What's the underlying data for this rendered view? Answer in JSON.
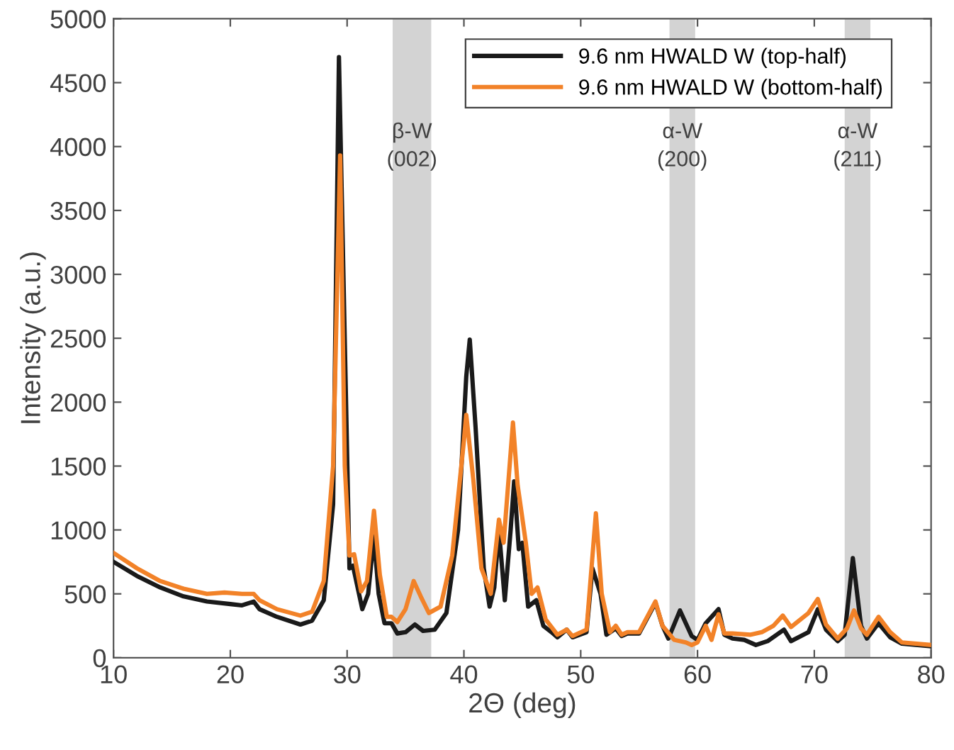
{
  "chart_data": {
    "type": "line",
    "xlabel": "2Θ (deg)",
    "ylabel": "Intensity (a.u.)",
    "xlim": [
      10,
      80
    ],
    "ylim": [
      0,
      5000
    ],
    "xticks": [
      10,
      20,
      30,
      40,
      50,
      60,
      70,
      80
    ],
    "yticks": [
      0,
      500,
      1000,
      1500,
      2000,
      2500,
      3000,
      3500,
      4000,
      4500,
      5000
    ],
    "grid": false,
    "legend": "top right",
    "line_style": "solid",
    "marker": "none",
    "bands": [
      {
        "axis": "x",
        "from": 33.9,
        "to": 37.2,
        "label": "β-W\n(002)",
        "color": "#d3d3d3"
      },
      {
        "axis": "x",
        "from": 57.6,
        "to": 59.8,
        "label": "α-W\n(200)",
        "color": "#d3d3d3"
      },
      {
        "axis": "x",
        "from": 72.6,
        "to": 74.8,
        "label": "α-W\n(211)",
        "color": "#d3d3d3"
      }
    ],
    "series": [
      {
        "name": "9.6 nm HWALD W (top-half)",
        "color": "#1a1a1a",
        "x": [
          10,
          12,
          14,
          16,
          18,
          20,
          21,
          22,
          22.5,
          24,
          26,
          27,
          28,
          28.8,
          29.3,
          30.2,
          30.5,
          31.3,
          31.8,
          32.3,
          32.7,
          33.2,
          33.8,
          34.3,
          35,
          35.8,
          36.5,
          37.5,
          38.5,
          39.5,
          40.2,
          40.5,
          41,
          41.7,
          42.2,
          42.6,
          43,
          43.5,
          44,
          44.3,
          44.7,
          45,
          45.5,
          46.2,
          46.8,
          47.5,
          48,
          48.8,
          49.3,
          50.5,
          51,
          51.7,
          52.2,
          53,
          53.5,
          54,
          55,
          56.4,
          57,
          57.5,
          58.5,
          59.5,
          60,
          60.7,
          61.8,
          62.3,
          63,
          64,
          65,
          66,
          67.4,
          68,
          69.5,
          70.3,
          71,
          72,
          72.6,
          73.3,
          74,
          74.5,
          75.5,
          76.5,
          77.5,
          80
        ],
        "values": [
          750,
          640,
          550,
          480,
          440,
          420,
          410,
          440,
          380,
          320,
          260,
          290,
          450,
          1200,
          4700,
          700,
          720,
          380,
          500,
          950,
          500,
          270,
          270,
          190,
          200,
          260,
          210,
          220,
          350,
          1000,
          2200,
          2490,
          1800,
          700,
          400,
          550,
          1000,
          450,
          1000,
          1380,
          850,
          900,
          400,
          450,
          250,
          200,
          160,
          220,
          160,
          200,
          700,
          500,
          180,
          230,
          170,
          190,
          190,
          430,
          250,
          150,
          370,
          170,
          140,
          270,
          380,
          180,
          150,
          140,
          100,
          130,
          220,
          130,
          200,
          380,
          220,
          130,
          180,
          780,
          250,
          150,
          270,
          160,
          110,
          90
        ]
      },
      {
        "name": "9.6 nm HWALD W (bottom-half)",
        "color": "#f28228",
        "x": [
          10,
          12,
          14,
          16,
          18,
          19.5,
          21,
          22,
          22.5,
          24,
          26,
          27,
          28,
          28.8,
          29.4,
          29.8,
          30.2,
          30.6,
          31.2,
          31.7,
          32.3,
          32.8,
          33.4,
          33.8,
          34.3,
          35,
          35.7,
          36.3,
          37,
          38,
          39,
          40,
          40.2,
          40.8,
          41.5,
          42.3,
          43,
          43.4,
          44.2,
          44.6,
          45.3,
          45.8,
          46.3,
          47,
          48,
          48.8,
          49.3,
          50.5,
          51.3,
          51.8,
          52.5,
          53,
          53.5,
          54,
          55,
          56.4,
          57,
          58,
          59,
          59.5,
          60,
          60.7,
          61.2,
          61.8,
          62.3,
          63,
          64.5,
          65.5,
          66.5,
          67.3,
          68,
          69.5,
          70.3,
          71,
          72,
          72.8,
          73.4,
          74,
          74.5,
          75.5,
          76.5,
          77.5,
          80
        ],
        "values": [
          820,
          700,
          600,
          540,
          500,
          510,
          500,
          500,
          450,
          380,
          330,
          360,
          600,
          1500,
          3930,
          1500,
          800,
          810,
          520,
          600,
          1150,
          650,
          320,
          320,
          280,
          380,
          600,
          480,
          350,
          400,
          800,
          1700,
          1900,
          1400,
          700,
          500,
          1080,
          900,
          1840,
          1350,
          900,
          500,
          550,
          300,
          180,
          220,
          170,
          220,
          1130,
          500,
          200,
          250,
          180,
          200,
          200,
          440,
          250,
          140,
          120,
          100,
          120,
          250,
          140,
          340,
          190,
          190,
          180,
          200,
          250,
          330,
          240,
          350,
          460,
          260,
          150,
          230,
          370,
          230,
          180,
          320,
          200,
          120,
          100
        ]
      }
    ]
  }
}
